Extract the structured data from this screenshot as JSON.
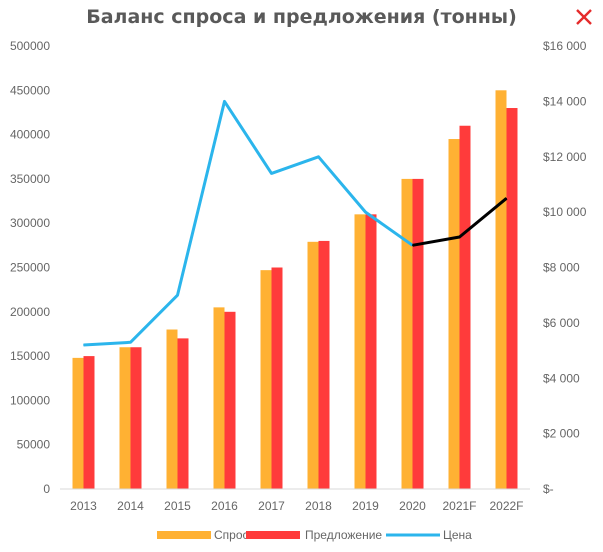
{
  "window": {
    "close_icon": "close-x-icon",
    "close_color": "#e52b2b"
  },
  "chart_data": {
    "type": "bar",
    "title": "Баланс спроса и предложения (тонны)",
    "categories": [
      "2013",
      "2014",
      "2015",
      "2016",
      "2017",
      "2018",
      "2019",
      "2020",
      "2021F",
      "2022F"
    ],
    "series": [
      {
        "name": "Спрос",
        "type": "bar",
        "axis": "left",
        "color": "#ffb133",
        "values": [
          148000,
          160000,
          180000,
          205000,
          247000,
          279000,
          310000,
          350000,
          395000,
          450000
        ]
      },
      {
        "name": "Предложение",
        "type": "bar",
        "axis": "left",
        "color": "#ff3b3b",
        "values": [
          150000,
          160000,
          170000,
          200000,
          250000,
          280000,
          310000,
          350000,
          410000,
          430000
        ]
      },
      {
        "name": "Цена",
        "type": "line",
        "axis": "right",
        "color": "#2bb5ec",
        "values": [
          5200,
          5300,
          7000,
          14000,
          11400,
          12000,
          10000,
          8800,
          9100,
          10500
        ],
        "forecast_color": "#000000",
        "forecast_from_index": 7
      }
    ],
    "y_left": {
      "ylim": [
        0,
        500000
      ],
      "ticks": [
        "0",
        "50000",
        "100000",
        "150000",
        "200000",
        "250000",
        "300000",
        "350000",
        "400000",
        "450000",
        "500000"
      ]
    },
    "y_right": {
      "ylim": [
        0,
        16000
      ],
      "ticks": [
        "$-",
        "$2 000",
        "$4 000",
        "$6 000",
        "$8 000",
        "$10 000",
        "$12 000",
        "$14 000",
        "$16 000"
      ]
    },
    "legend": {
      "placement": "bottom"
    },
    "grid": false
  }
}
